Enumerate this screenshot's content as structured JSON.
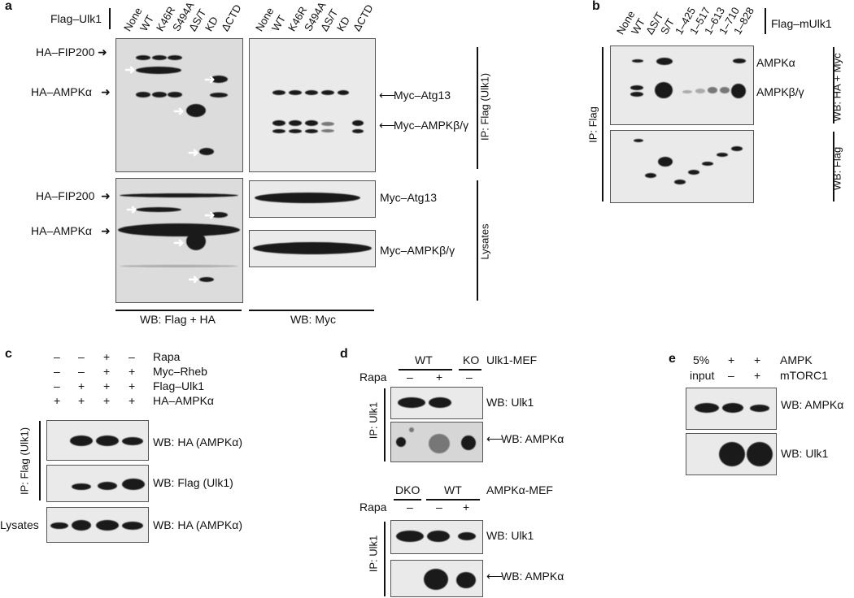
{
  "panel_a": {
    "letter": "a",
    "construct_label": "Flag–Ulk1",
    "lanes": [
      "None",
      "WT",
      "K46R",
      "S494A",
      "ΔS/T",
      "KD",
      "ΔCTD"
    ],
    "left_labels": {
      "fip200_ip": "HA–FIP200",
      "ampk_ip": "HA–AMPKα",
      "fip200_lys": "HA–FIP200",
      "ampk_lys": "HA–AMPKα"
    },
    "right_labels": {
      "atg13_ip": "Myc–Atg13",
      "ampkbg_ip": "Myc–AMPKβ/γ",
      "atg13_lys": "Myc–Atg13",
      "ampkbg_lys": "Myc–AMPKβ/γ"
    },
    "side_labels": {
      "ip": "IP: Flag (Ulk1)",
      "lys": "Lysates"
    },
    "bottom_labels": {
      "left": "WB: Flag + HA",
      "right": "WB: Myc"
    }
  },
  "panel_b": {
    "letter": "b",
    "construct_label": "Flag–mUlk1",
    "lanes": [
      "None",
      "WT",
      "ΔS/T",
      "S/T",
      "1–425",
      "1–517",
      "1–613",
      "1–710",
      "1–828"
    ],
    "right_labels": {
      "ampka": "AMPKα",
      "ampkbg": "AMPKβ/γ"
    },
    "side_labels": {
      "ip": "IP: Flag",
      "wb1": "WB: HA + Myc",
      "wb2": "WB: Flag"
    }
  },
  "panel_c": {
    "letter": "c",
    "rows": [
      {
        "label": "Rapa",
        "signs": [
          "–",
          "–",
          "+",
          "–"
        ]
      },
      {
        "label": "Myc–Rheb",
        "signs": [
          "–",
          "–",
          "+",
          "+"
        ]
      },
      {
        "label": "Flag–Ulk1",
        "signs": [
          "–",
          "+",
          "+",
          "+"
        ]
      },
      {
        "label": "HA–AMPKα",
        "signs": [
          "+",
          "+",
          "+",
          "+"
        ]
      }
    ],
    "wb_labels": [
      "WB: HA (AMPKα)",
      "WB: Flag (Ulk1)",
      "WB: HA (AMPKα)"
    ],
    "side_labels": {
      "ip": "IP: Flag (Ulk1)",
      "lys": "Lysates"
    }
  },
  "panel_d": {
    "letter": "d",
    "top": {
      "groups": [
        "WT",
        "KO"
      ],
      "mef": "Ulk1-MEF",
      "rapa_label": "Rapa",
      "rapa_signs": [
        "–",
        "+",
        "–"
      ],
      "wb1": "WB: Ulk1",
      "wb2": "WB: AMPKα",
      "ip": "IP: Ulk1"
    },
    "bottom": {
      "groups": [
        "DKO",
        "WT"
      ],
      "mef": "AMPKα-MEF",
      "rapa_label": "Rapa",
      "rapa_signs": [
        "–",
        "–",
        "+"
      ],
      "wb1": "WB: Ulk1",
      "wb2": "WB: AMPKα",
      "ip": "IP: Ulk1"
    }
  },
  "panel_e": {
    "letter": "e",
    "col_input_1": "5%",
    "col_input_2": "input",
    "rows": [
      {
        "label": "AMPK",
        "signs": [
          "+",
          "+"
        ]
      },
      {
        "label": "mTORC1",
        "signs": [
          "–",
          "+"
        ]
      }
    ],
    "wb_labels": [
      "WB: AMPKα",
      "WB: Ulk1"
    ]
  }
}
